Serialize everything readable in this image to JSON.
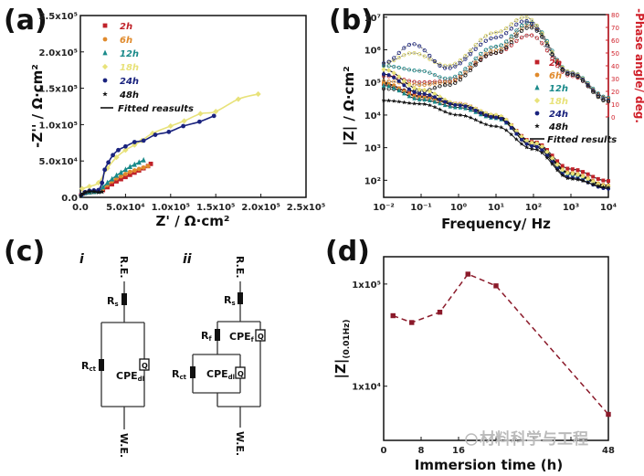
{
  "figure": {
    "panel_labels": [
      "(a)",
      "(b)",
      "(c)",
      "(d)"
    ],
    "watermark": "材料科学与工程"
  },
  "chart_data": [
    {
      "panel": "a",
      "type": "scatter",
      "title": "",
      "xlabel": "Z' / Ω·cm²",
      "ylabel": "-Z'' / Ω·cm²",
      "xlim": [
        0,
        250000
      ],
      "ylim": [
        0,
        250000
      ],
      "xticks": [
        "0.0",
        "5.0x10⁴",
        "1.0x10⁵",
        "1.5x10⁵",
        "2.0x10⁵",
        "2.5x10⁵"
      ],
      "yticks": [
        "0.0",
        "5.0x10⁴",
        "1.0x10⁵",
        "1.5x10⁵",
        "2.0x10⁵",
        "2.5x10⁵"
      ],
      "legend_position": "top-left",
      "legend_fit_label": "Fitted reasults",
      "series": [
        {
          "name": "2h",
          "color": "#c0222a",
          "marker": "square",
          "x": [
            1000,
            5000,
            10000,
            15000,
            20000,
            25000,
            30000,
            35000,
            40000,
            45000,
            50000,
            55000,
            60000,
            65000,
            70000,
            75000,
            78000
          ],
          "y": [
            3000,
            6000,
            7000,
            7500,
            8000,
            10000,
            14000,
            18000,
            22000,
            25000,
            28000,
            31000,
            34000,
            37000,
            40000,
            43000,
            46000
          ]
        },
        {
          "name": "6h",
          "color": "#e08a2c",
          "marker": "circle",
          "x": [
            1000,
            5000,
            10000,
            15000,
            20000,
            25000,
            30000,
            35000,
            40000,
            45000,
            50000,
            55000,
            60000,
            65000,
            70000,
            75000
          ],
          "y": [
            3000,
            6000,
            7000,
            7500,
            8000,
            12000,
            17000,
            22000,
            26000,
            29000,
            32000,
            35000,
            37000,
            39000,
            41000,
            43000
          ]
        },
        {
          "name": "12h",
          "color": "#1a8a8a",
          "marker": "triangle",
          "x": [
            1000,
            5000,
            10000,
            15000,
            20000,
            25000,
            30000,
            35000,
            40000,
            45000,
            50000,
            55000,
            60000,
            65000,
            70000
          ],
          "y": [
            3000,
            6000,
            7000,
            7500,
            8000,
            14000,
            20000,
            25000,
            30000,
            34000,
            38000,
            42000,
            45000,
            48000,
            51000
          ]
        },
        {
          "name": "18h",
          "color": "#e8e27a",
          "marker": "diamond",
          "x": [
            2000,
            10000,
            20000,
            30000,
            40000,
            50000,
            60000,
            68000,
            80000,
            100000,
            115000,
            133000,
            150000,
            175000,
            197000
          ],
          "y": [
            12000,
            15000,
            20000,
            40000,
            55000,
            65000,
            72000,
            78000,
            88000,
            98000,
            105000,
            115000,
            118000,
            135000,
            142000
          ]
        },
        {
          "name": "24h",
          "color": "#1a237e",
          "marker": "circle",
          "x": [
            1000,
            5000,
            10000,
            15000,
            20000,
            24000,
            27000,
            31000,
            36000,
            42000,
            50000,
            60000,
            70000,
            83000,
            98000,
            114000,
            132000,
            148000
          ],
          "y": [
            3000,
            7000,
            9000,
            9500,
            10000,
            20000,
            38000,
            48000,
            58000,
            65000,
            70000,
            76000,
            78000,
            86000,
            90000,
            98000,
            104000,
            112000
          ]
        },
        {
          "name": "48h",
          "color": "#111111",
          "marker": "star",
          "x": [
            500,
            3000,
            6000,
            10000,
            15000,
            20000,
            24000
          ],
          "y": [
            2000,
            5000,
            7000,
            8000,
            8000,
            7000,
            7500
          ]
        }
      ]
    },
    {
      "panel": "b",
      "type": "line",
      "title": "",
      "xlabel": "Frequency/ Hz",
      "ylabel": "|Z| / Ω·cm²",
      "y2label": "-Phase angle/ deg.",
      "xscale": "log",
      "yscale": "log",
      "xlim": [
        0.01,
        10000
      ],
      "ylim": [
        30,
        12000000
      ],
      "y2lim": [
        0,
        80
      ],
      "xticks": [
        "10⁻²",
        "10⁻¹",
        "10⁰",
        "10¹",
        "10²",
        "10³",
        "10⁴"
      ],
      "yticks": [
        "10²",
        "10³",
        "10⁴",
        "10⁵",
        "10⁶",
        "10⁷"
      ],
      "y2ticks": [
        "0",
        "10",
        "20",
        "30",
        "40",
        "50",
        "60",
        "70",
        "80"
      ],
      "y2_color": "#d0202a",
      "legend_position": "right",
      "legend_fit_label": "Fitted results",
      "series": [
        {
          "name": "2h",
          "color": "#c0222a",
          "marker": "square",
          "modulus": {
            "x": [
              0.01,
              0.1,
              1,
              10,
              100,
              1000,
              10000
            ],
            "y": [
              90000,
              38000,
              22000,
              9500,
              1500,
              220,
              95
            ]
          },
          "phase": {
            "x": [
              0.01,
              0.1,
              0.5,
              10,
              80,
              1000,
              10000
            ],
            "y": [
              32,
              27,
              28,
              50,
              64,
              32,
              15
            ]
          }
        },
        {
          "name": "6h",
          "color": "#e08a2c",
          "marker": "circle",
          "modulus": {
            "x": [
              0.01,
              0.1,
              1,
              10,
              100,
              1000,
              10000
            ],
            "y": [
              95000,
              35000,
              20000,
              9000,
              1400,
              170,
              70
            ]
          },
          "phase": {
            "x": [
              0.01,
              0.1,
              0.5,
              10,
              80,
              1000,
              10000
            ],
            "y": [
              28,
              25,
              27,
              52,
              72,
              34,
              14
            ]
          }
        },
        {
          "name": "12h",
          "color": "#1a8a8a",
          "marker": "triangle",
          "modulus": {
            "x": [
              0.01,
              0.1,
              1,
              10,
              100,
              1000,
              10000
            ],
            "y": [
              80000,
              30000,
              17000,
              8000,
              1200,
              150,
              62
            ]
          },
          "phase": {
            "x": [
              0.01,
              0.1,
              0.5,
              10,
              80,
              1000,
              10000
            ],
            "y": [
              40,
              36,
              30,
              55,
              74,
              35,
              15
            ]
          }
        },
        {
          "name": "18h",
          "color": "#e8e27a",
          "marker": "diamond",
          "modulus": {
            "x": [
              0.01,
              0.1,
              1,
              10,
              100,
              1000,
              10000
            ],
            "y": [
              250000,
              60000,
              22000,
              10000,
              1400,
              160,
              65
            ]
          },
          "phase": {
            "x": [
              0.01,
              0.06,
              0.5,
              10,
              60,
              1000,
              10000
            ],
            "y": [
              42,
              50,
              40,
              66,
              78,
              35,
              12
            ]
          }
        },
        {
          "name": "24h",
          "color": "#1a237e",
          "marker": "circle",
          "modulus": {
            "x": [
              0.01,
              0.1,
              1,
              10,
              100,
              1000,
              10000
            ],
            "y": [
              180000,
              45000,
              20000,
              8500,
              1100,
              120,
              55
            ]
          },
          "phase": {
            "x": [
              0.01,
              0.06,
              0.5,
              10,
              60,
              1000,
              10000
            ],
            "y": [
              42,
              57,
              38,
              62,
              75,
              34,
              13
            ]
          }
        },
        {
          "name": "48h",
          "color": "#111111",
          "marker": "star",
          "modulus": {
            "x": [
              0.01,
              0.1,
              1,
              10,
              100,
              1000,
              10000
            ],
            "y": [
              28000,
              22000,
              10000,
              4500,
              900,
              110,
              60
            ]
          },
          "phase": {
            "x": [
              0.01,
              0.1,
              0.5,
              10,
              80,
              1000,
              10000
            ],
            "y": [
              22,
              20,
              25,
              50,
              70,
              33,
              12
            ]
          }
        }
      ]
    },
    {
      "panel": "d",
      "type": "line",
      "title": "",
      "xlabel": "Immersion time (h)",
      "ylabel": "|Z|(0.01Hz)",
      "yscale": "log",
      "xlim": [
        0,
        48
      ],
      "ylim": [
        2950,
        185000
      ],
      "xticks": [
        "0",
        "8",
        "16",
        "48"
      ],
      "xtick_values": [
        0,
        8,
        16,
        48
      ],
      "yticks": [
        "1x10⁴",
        "1x10⁵"
      ],
      "ytick_values": [
        10000,
        100000
      ],
      "line_style": "dashed",
      "color": "#8b1a2a",
      "x": [
        2,
        6,
        12,
        18,
        24,
        48
      ],
      "y": [
        49000,
        42000,
        53000,
        125000,
        96000,
        5300
      ]
    }
  ],
  "circuits": {
    "i": {
      "label": "i",
      "top_terminal": "R.E.",
      "bottom_terminal": "W.E.",
      "components": [
        "Rs",
        "Rct",
        "CPEdl"
      ],
      "q_symbol": "Q"
    },
    "ii": {
      "label": "ii",
      "top_terminal": "R.E.",
      "bottom_terminal": "W.E.",
      "components": [
        "Rs",
        "Rf",
        "CPEf",
        "Rct",
        "CPEdl"
      ],
      "q_symbol": "Q"
    }
  }
}
